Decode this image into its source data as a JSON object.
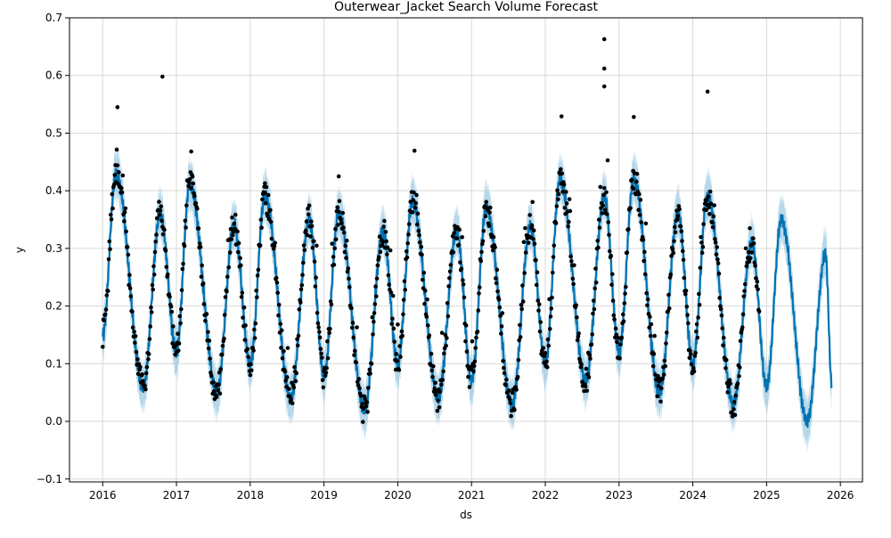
{
  "chart_data": {
    "type": "line",
    "title": "Outerwear_Jacket Search Volume Forecast",
    "xlabel": "ds",
    "ylabel": "y",
    "xlim": [
      2015.55,
      2026.3
    ],
    "ylim": [
      -0.105,
      0.7
    ],
    "x_ticks": [
      2016,
      2017,
      2018,
      2019,
      2020,
      2021,
      2022,
      2023,
      2024,
      2025,
      2026
    ],
    "x_tick_labels": [
      "2016",
      "2017",
      "2018",
      "2019",
      "2020",
      "2021",
      "2022",
      "2023",
      "2024",
      "2025",
      "2026"
    ],
    "y_ticks": [
      -0.1,
      0.0,
      0.1,
      0.2,
      0.3,
      0.4,
      0.5,
      0.6,
      0.7
    ],
    "y_tick_labels": [
      "−0.1",
      "0.0",
      "0.1",
      "0.2",
      "0.3",
      "0.4",
      "0.5",
      "0.6",
      "0.7"
    ],
    "grid": true,
    "colors": {
      "forecast": "#0072B2",
      "interval": "#9ecae1",
      "observed": "#000000",
      "grid": "#d9d9d9"
    },
    "observed_range": [
      2016.0,
      2024.9
    ],
    "forecast_range": [
      2016.0,
      2025.88
    ],
    "seasonal_model": {
      "peaks": [
        {
          "t": 2016.18,
          "y": 0.43
        },
        {
          "t": 2016.78,
          "y": 0.36
        },
        {
          "t": 2017.18,
          "y": 0.41
        },
        {
          "t": 2017.78,
          "y": 0.34
        },
        {
          "t": 2018.2,
          "y": 0.39
        },
        {
          "t": 2018.8,
          "y": 0.35
        },
        {
          "t": 2019.2,
          "y": 0.36
        },
        {
          "t": 2019.8,
          "y": 0.33
        },
        {
          "t": 2020.2,
          "y": 0.38
        },
        {
          "t": 2020.8,
          "y": 0.33
        },
        {
          "t": 2021.2,
          "y": 0.37
        },
        {
          "t": 2021.8,
          "y": 0.34
        },
        {
          "t": 2022.2,
          "y": 0.42
        },
        {
          "t": 2022.8,
          "y": 0.39
        },
        {
          "t": 2023.2,
          "y": 0.42
        },
        {
          "t": 2023.8,
          "y": 0.36
        },
        {
          "t": 2024.2,
          "y": 0.39
        },
        {
          "t": 2024.8,
          "y": 0.31
        },
        {
          "t": 2025.2,
          "y": 0.35
        },
        {
          "t": 2025.8,
          "y": 0.29
        }
      ],
      "troughs": [
        {
          "t": 2016.0,
          "y": 0.15
        },
        {
          "t": 2016.55,
          "y": 0.06
        },
        {
          "t": 2017.0,
          "y": 0.12
        },
        {
          "t": 2017.55,
          "y": 0.05
        },
        {
          "t": 2018.0,
          "y": 0.1
        },
        {
          "t": 2018.55,
          "y": 0.04
        },
        {
          "t": 2019.0,
          "y": 0.08
        },
        {
          "t": 2019.55,
          "y": 0.02
        },
        {
          "t": 2020.0,
          "y": 0.1
        },
        {
          "t": 2020.55,
          "y": 0.04
        },
        {
          "t": 2021.0,
          "y": 0.07
        },
        {
          "t": 2021.55,
          "y": 0.03
        },
        {
          "t": 2022.0,
          "y": 0.1
        },
        {
          "t": 2022.55,
          "y": 0.07
        },
        {
          "t": 2023.0,
          "y": 0.12
        },
        {
          "t": 2023.55,
          "y": 0.05
        },
        {
          "t": 2024.0,
          "y": 0.1
        },
        {
          "t": 2024.55,
          "y": 0.03
        },
        {
          "t": 2025.0,
          "y": 0.06
        },
        {
          "t": 2025.55,
          "y": 0.0
        },
        {
          "t": 2025.88,
          "y": 0.07
        }
      ],
      "interval_halfwidth": 0.035,
      "observed_spikes": [
        {
          "t": 2016.2,
          "y": 0.545
        },
        {
          "t": 2016.81,
          "y": 0.598
        },
        {
          "t": 2017.2,
          "y": 0.468
        },
        {
          "t": 2018.2,
          "y": 0.413
        },
        {
          "t": 2019.2,
          "y": 0.425
        },
        {
          "t": 2022.22,
          "y": 0.529
        },
        {
          "t": 2022.8,
          "y": 0.663
        },
        {
          "t": 2022.8,
          "y": 0.612
        },
        {
          "t": 2022.8,
          "y": 0.581
        },
        {
          "t": 2023.2,
          "y": 0.528
        },
        {
          "t": 2024.2,
          "y": 0.572
        }
      ]
    }
  }
}
